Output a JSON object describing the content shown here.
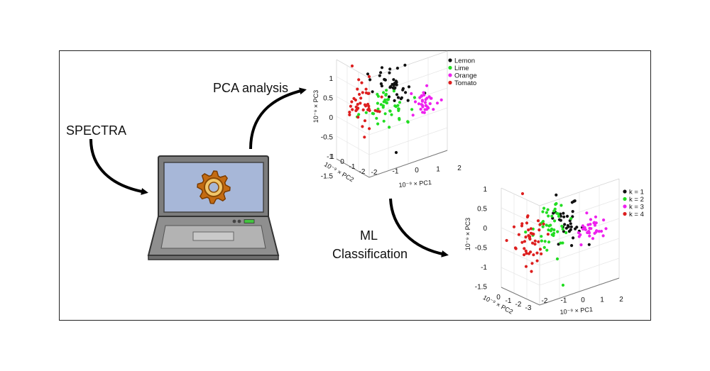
{
  "labels": {
    "spectra": "SPECTRA",
    "pca": "PCA analysis",
    "ml_line1": "ML",
    "ml_line2": "Classification"
  },
  "icons": {
    "laptop": "laptop-icon",
    "gear": "gear-icon",
    "arrow": "curved-arrow-icon"
  },
  "colors": {
    "black": "#111111",
    "lime": "#22dd22",
    "magenta": "#ee22ee",
    "red": "#dd1f1f"
  },
  "plot_common": {
    "xlabel": "10⁻⁹ × PC1",
    "ylabel": "10⁻⁹ × PC2",
    "zlabel": "10⁻⁹ × PC3"
  },
  "chart_data": [
    {
      "type": "scatter",
      "title": "",
      "zlim": [
        -1.5,
        1
      ],
      "z_ticks": [
        "0.5",
        "0",
        "-0.5",
        "-1",
        "-1.5"
      ],
      "z_ticks_top": [
        "1",
        "0.5",
        "0",
        "-0.5",
        "-1",
        "-1.5"
      ],
      "x_ticks": [
        "-2",
        "-1",
        "0",
        "1",
        "2"
      ],
      "y_ticks": [
        "-2",
        "-1",
        "0",
        "1"
      ],
      "legend": [
        "Lemon",
        "Lime",
        "Orange",
        "Tomato"
      ],
      "series": [
        {
          "name": "Lemon",
          "color": "#111111"
        },
        {
          "name": "Lime",
          "color": "#22dd22"
        },
        {
          "name": "Orange",
          "color": "#ee22ee"
        },
        {
          "name": "Tomato",
          "color": "#dd1f1f"
        }
      ]
    },
    {
      "type": "scatter",
      "title": "",
      "zlim": [
        -1.5,
        1
      ],
      "z_ticks": [
        "1",
        "0.5",
        "0",
        "-0.5",
        "-1",
        "-1.5"
      ],
      "x_ticks": [
        "-2",
        "-1",
        "0",
        "1",
        "2"
      ],
      "y_ticks": [
        "-3",
        "-2",
        "-1",
        "0"
      ],
      "legend": [
        "k = 1",
        "k = 2",
        "k = 3",
        "k = 4"
      ],
      "series": [
        {
          "name": "k = 1",
          "color": "#111111"
        },
        {
          "name": "k = 2",
          "color": "#22dd22"
        },
        {
          "name": "k = 3",
          "color": "#ee22ee"
        },
        {
          "name": "k = 4",
          "color": "#dd1f1f"
        }
      ]
    }
  ]
}
